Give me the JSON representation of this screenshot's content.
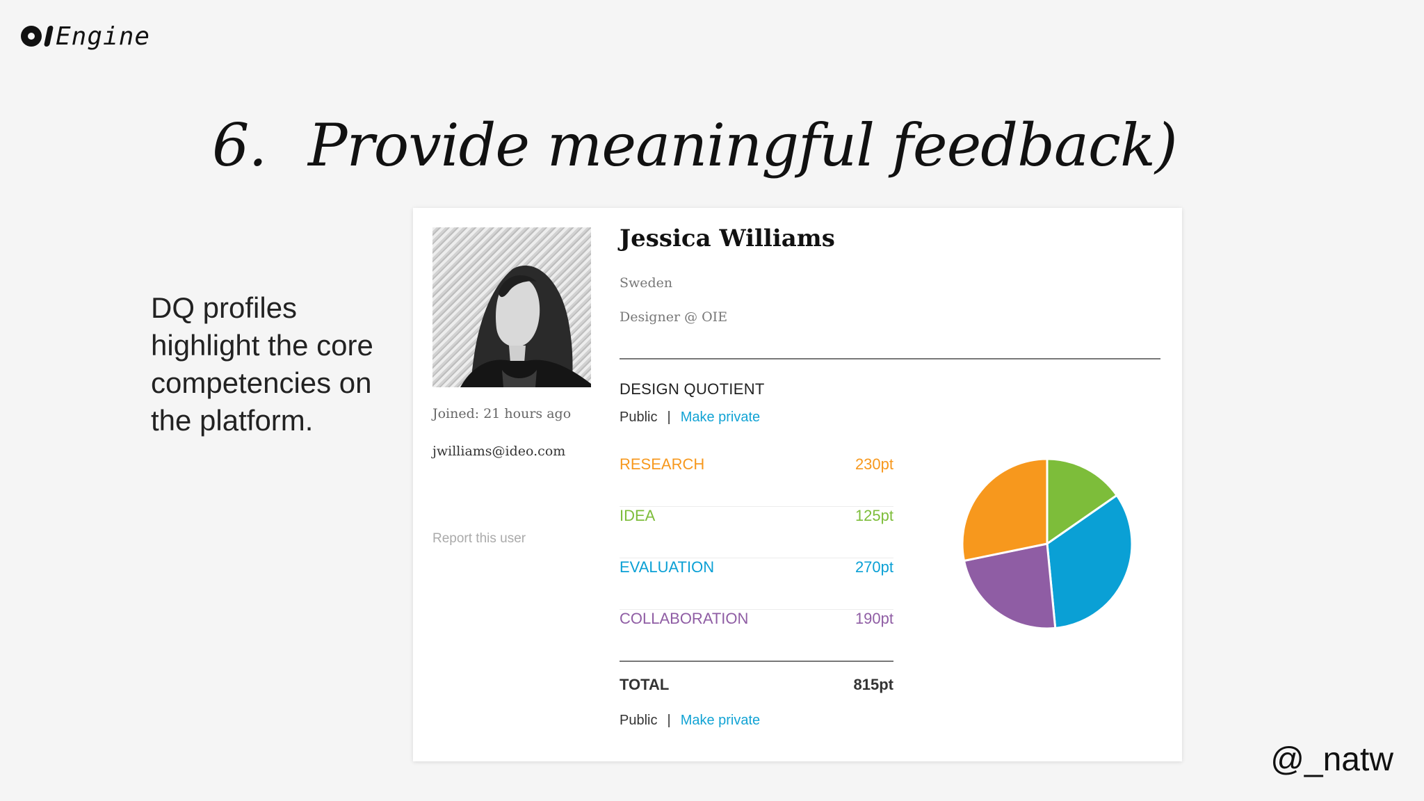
{
  "logo": {
    "text": "Engine"
  },
  "slide": {
    "number": "6.",
    "title": "Provide meaningful feedback)",
    "lead": "DQ profiles highlight the core competencies on the platform.",
    "handle": "@_natw"
  },
  "profile": {
    "name": "Jessica Williams",
    "country": "Sweden",
    "role": "Designer @ OIE",
    "joined": "Joined: 21 hours ago",
    "email": "jwilliams@ideo.com",
    "report_label": "Report this user",
    "photo_icon": "profile-photo"
  },
  "dq": {
    "heading": "DESIGN QUOTIENT",
    "visibility_status": "Public",
    "separator": "|",
    "make_private_label": "Make private",
    "scores": [
      {
        "label": "RESEARCH",
        "value": "230pt",
        "color": "#f7981d"
      },
      {
        "label": "IDEA",
        "value": "125pt",
        "color": "#7dbd3a"
      },
      {
        "label": "EVALUATION",
        "value": "270pt",
        "color": "#0aa0d5"
      },
      {
        "label": "COLLABORATION",
        "value": "190pt",
        "color": "#8f5da4"
      }
    ],
    "total_label": "TOTAL",
    "total_value": "815pt"
  },
  "chart_data": {
    "type": "pie",
    "categories": [
      "RESEARCH",
      "IDEA",
      "EVALUATION",
      "COLLABORATION"
    ],
    "values": [
      230,
      125,
      270,
      190
    ],
    "colors": [
      "#f7981d",
      "#7dbd3a",
      "#0aa0d5",
      "#8f5da4"
    ],
    "order_clockwise_from_top": [
      "IDEA",
      "EVALUATION",
      "COLLABORATION",
      "RESEARCH"
    ]
  }
}
